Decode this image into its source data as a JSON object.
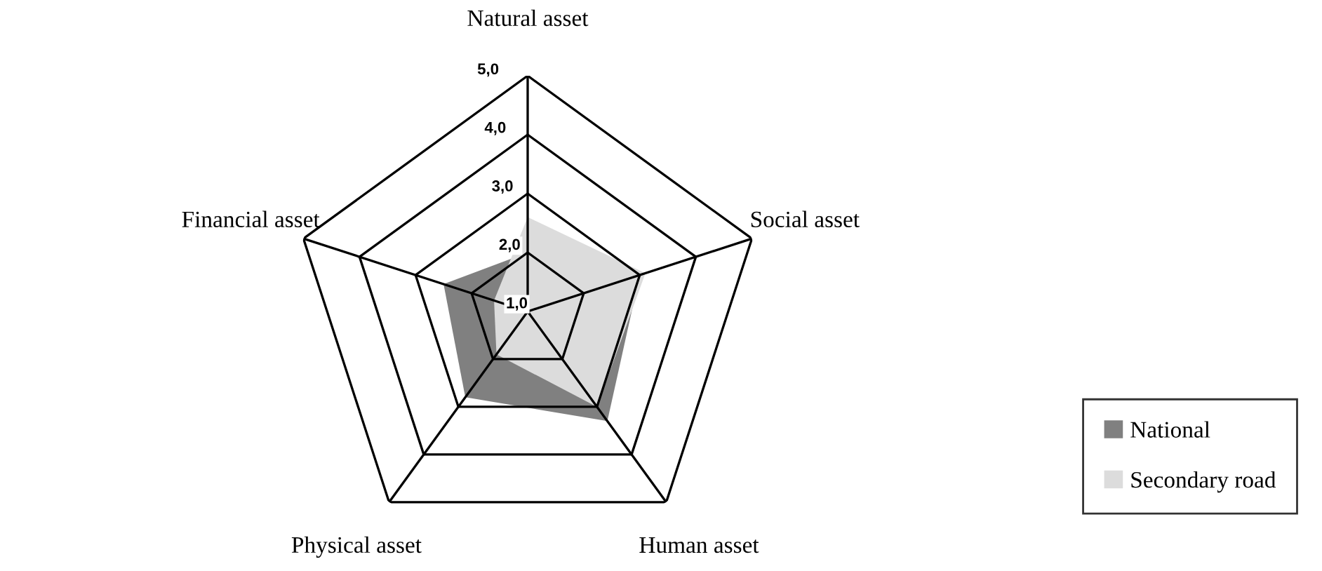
{
  "chart_data": {
    "type": "radar",
    "categories": [
      "Natural asset",
      "Social asset",
      "Human asset",
      "Physical asset",
      "Financial asset"
    ],
    "series": [
      {
        "name": "National",
        "color": "#808080",
        "values": [
          2.0,
          3.0,
          3.3,
          2.8,
          2.5
        ]
      },
      {
        "name": "Secondary road",
        "color": "#dcdcdc",
        "values": [
          2.6,
          3.1,
          3.0,
          1.9,
          1.6
        ]
      }
    ],
    "ylim": [
      1,
      5
    ],
    "yticks": [
      {
        "value": 1,
        "label": "1,0"
      },
      {
        "value": 2,
        "label": "2,0"
      },
      {
        "value": 3,
        "label": "3,0"
      },
      {
        "value": 4,
        "label": "4,0"
      },
      {
        "value": 5,
        "label": "5,0"
      }
    ],
    "grid": true,
    "legend": "bottom right"
  }
}
